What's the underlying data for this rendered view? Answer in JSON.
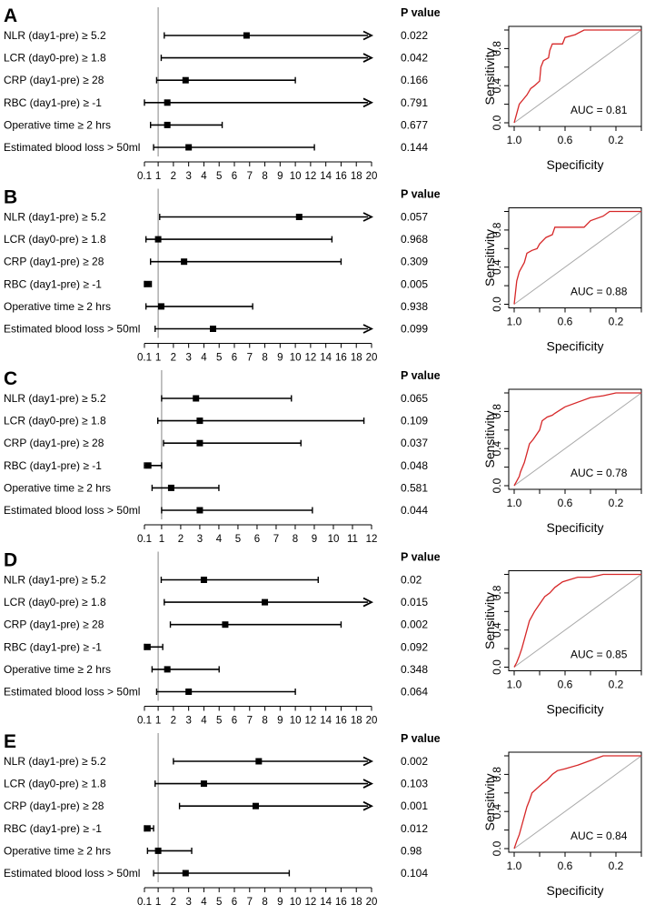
{
  "pvalue_header": "P value",
  "roc_xlabel": "Specificity",
  "roc_ylabel": "Sensitivity",
  "roc_x_ticks": [
    "1.0",
    "0.6",
    "0.2"
  ],
  "roc_y_ticks": [
    "0.0",
    "0.4",
    "0.8"
  ],
  "colors": {
    "roc_curve": "#d62728",
    "diagonal": "#a9a9a9",
    "axis": "#000000"
  },
  "chart_data": [
    {
      "panel": "A",
      "type": "forest",
      "xmax": 20,
      "x_ticks": [
        0.1,
        1,
        2,
        3,
        4,
        5,
        6,
        7,
        8,
        9,
        10,
        12,
        14,
        16,
        18,
        20
      ],
      "rows": [
        {
          "label": "NLR (day1-pre) ≥ 5.2",
          "est": 6.8,
          "lo": 1.4,
          "hi": 20,
          "arrow": true,
          "p": "0.022"
        },
        {
          "label": "LCR (day0-pre) ≥ 1.8",
          "est": null,
          "lo": 1.2,
          "hi": 20,
          "arrow": true,
          "p": "0.042"
        },
        {
          "label": "CRP (day1-pre) ≥ 28",
          "est": 2.8,
          "lo": 0.9,
          "hi": 10,
          "arrow": false,
          "p": "0.166"
        },
        {
          "label": "RBC (day1-pre) ≥ -1",
          "est": 1.6,
          "lo": 0.1,
          "hi": 20,
          "arrow": true,
          "p": "0.791"
        },
        {
          "label": "Operative time ≥ 2 hrs",
          "est": 1.6,
          "lo": 0.5,
          "hi": 5.2,
          "arrow": false,
          "p": "0.677"
        },
        {
          "label": "Estimated blood loss > 50ml",
          "est": 3.0,
          "lo": 0.7,
          "hi": 12.5,
          "arrow": false,
          "p": "0.144"
        }
      ],
      "roc": {
        "auc_text": "AUC = 0.81",
        "spec": [
          1.0,
          0.98,
          0.96,
          0.93,
          0.9,
          0.87,
          0.84,
          0.8,
          0.79,
          0.77,
          0.73,
          0.72,
          0.7,
          0.62,
          0.6,
          0.52,
          0.45,
          0.3,
          0.0
        ],
        "sens": [
          0.0,
          0.1,
          0.2,
          0.25,
          0.3,
          0.37,
          0.4,
          0.45,
          0.6,
          0.67,
          0.7,
          0.78,
          0.85,
          0.85,
          0.92,
          0.95,
          1.0,
          1.0,
          1.0
        ]
      }
    },
    {
      "panel": "B",
      "type": "forest",
      "xmax": 20,
      "x_ticks": [
        0.1,
        1,
        2,
        3,
        4,
        5,
        6,
        7,
        8,
        9,
        10,
        12,
        14,
        16,
        18,
        20
      ],
      "rows": [
        {
          "label": "NLR (day1-pre) ≥ 5.2",
          "est": 10.5,
          "lo": 1.1,
          "hi": 20,
          "arrow": true,
          "p": "0.057"
        },
        {
          "label": "LCR (day0-pre) ≥ 1.8",
          "est": 1.0,
          "lo": 0.2,
          "hi": 14.8,
          "arrow": false,
          "p": "0.968"
        },
        {
          "label": "CRP (day1-pre) ≥ 28",
          "est": 2.7,
          "lo": 0.5,
          "hi": 16,
          "arrow": false,
          "p": "0.309"
        },
        {
          "label": "RBC (day1-pre) ≥ -1",
          "est": 0.3,
          "lo": 0.1,
          "hi": 0.55,
          "arrow": false,
          "p": "0.005"
        },
        {
          "label": "Operative time ≥ 2 hrs",
          "est": 1.2,
          "lo": 0.2,
          "hi": 7.2,
          "arrow": false,
          "p": "0.938"
        },
        {
          "label": "Estimated blood loss > 50ml",
          "est": 4.6,
          "lo": 0.8,
          "hi": 20,
          "arrow": true,
          "p": "0.099"
        }
      ],
      "roc": {
        "auc_text": "AUC = 0.88",
        "spec": [
          1.0,
          0.98,
          0.96,
          0.94,
          0.92,
          0.9,
          0.86,
          0.82,
          0.8,
          0.75,
          0.7,
          0.68,
          0.58,
          0.45,
          0.4,
          0.3,
          0.25,
          0.0
        ],
        "sens": [
          0.0,
          0.25,
          0.35,
          0.4,
          0.45,
          0.55,
          0.58,
          0.6,
          0.65,
          0.72,
          0.75,
          0.83,
          0.83,
          0.83,
          0.9,
          0.95,
          1.0,
          1.0
        ]
      }
    },
    {
      "panel": "C",
      "type": "forest",
      "xmax": 12,
      "x_ticks": [
        0.1,
        1,
        2,
        3,
        4,
        5,
        6,
        7,
        8,
        9,
        10,
        11,
        12
      ],
      "rows": [
        {
          "label": "NLR (day1-pre) ≥ 5.2",
          "est": 2.8,
          "lo": 1.0,
          "hi": 7.8,
          "arrow": false,
          "p": "0.065"
        },
        {
          "label": "LCR (day0-pre) ≥ 1.8",
          "est": 3.0,
          "lo": 0.8,
          "hi": 11.6,
          "arrow": false,
          "p": "0.109"
        },
        {
          "label": "CRP (day1-pre) ≥ 28",
          "est": 3.0,
          "lo": 1.1,
          "hi": 8.3,
          "arrow": false,
          "p": "0.037"
        },
        {
          "label": "RBC (day1-pre) ≥ -1",
          "est": 0.3,
          "lo": 0.1,
          "hi": 1.0,
          "arrow": false,
          "p": "0.048"
        },
        {
          "label": "Operative time ≥ 2 hrs",
          "est": 1.5,
          "lo": 0.5,
          "hi": 4.0,
          "arrow": false,
          "p": "0.581"
        },
        {
          "label": "Estimated blood loss > 50ml",
          "est": 3.0,
          "lo": 1.0,
          "hi": 8.9,
          "arrow": false,
          "p": "0.044"
        }
      ],
      "roc": {
        "auc_text": "AUC = 0.78",
        "spec": [
          1.0,
          0.98,
          0.96,
          0.95,
          0.92,
          0.9,
          0.88,
          0.85,
          0.8,
          0.78,
          0.74,
          0.7,
          0.68,
          0.6,
          0.5,
          0.4,
          0.3,
          0.2,
          0.0
        ],
        "sens": [
          0.0,
          0.05,
          0.1,
          0.15,
          0.25,
          0.35,
          0.45,
          0.5,
          0.6,
          0.7,
          0.74,
          0.76,
          0.78,
          0.85,
          0.9,
          0.95,
          0.97,
          1.0,
          1.0
        ]
      }
    },
    {
      "panel": "D",
      "type": "forest",
      "xmax": 20,
      "x_ticks": [
        0.1,
        1,
        2,
        3,
        4,
        5,
        6,
        7,
        8,
        9,
        10,
        12,
        14,
        16,
        18,
        20
      ],
      "rows": [
        {
          "label": "NLR (day1-pre) ≥ 5.2",
          "est": 4.0,
          "lo": 1.2,
          "hi": 13,
          "arrow": false,
          "p": "0.02"
        },
        {
          "label": "LCR (day0-pre) ≥ 1.8",
          "est": 8.0,
          "lo": 1.4,
          "hi": 20,
          "arrow": true,
          "p": "0.015"
        },
        {
          "label": "CRP (day1-pre) ≥ 28",
          "est": 5.4,
          "lo": 1.8,
          "hi": 16,
          "arrow": false,
          "p": "0.002"
        },
        {
          "label": "RBC (day1-pre) ≥ -1",
          "est": 0.3,
          "lo": 0.1,
          "hi": 1.3,
          "arrow": false,
          "p": "0.092"
        },
        {
          "label": "Operative time ≥ 2 hrs",
          "est": 1.6,
          "lo": 0.6,
          "hi": 5.0,
          "arrow": false,
          "p": "0.348"
        },
        {
          "label": "Estimated blood loss > 50ml",
          "est": 3.0,
          "lo": 0.9,
          "hi": 10,
          "arrow": false,
          "p": "0.064"
        }
      ],
      "roc": {
        "auc_text": "AUC = 0.85",
        "spec": [
          1.0,
          0.98,
          0.96,
          0.94,
          0.92,
          0.9,
          0.88,
          0.86,
          0.84,
          0.8,
          0.76,
          0.72,
          0.68,
          0.62,
          0.5,
          0.4,
          0.3,
          0.2,
          0.0
        ],
        "sens": [
          0.0,
          0.05,
          0.12,
          0.2,
          0.3,
          0.4,
          0.5,
          0.55,
          0.6,
          0.68,
          0.76,
          0.8,
          0.86,
          0.92,
          0.97,
          0.97,
          1.0,
          1.0,
          1.0
        ]
      }
    },
    {
      "panel": "E",
      "type": "forest",
      "xmax": 20,
      "x_ticks": [
        0.1,
        1,
        2,
        3,
        4,
        5,
        6,
        7,
        8,
        9,
        10,
        12,
        14,
        16,
        18,
        20
      ],
      "rows": [
        {
          "label": "NLR (day1-pre) ≥ 5.2",
          "est": 7.6,
          "lo": 2.0,
          "hi": 20,
          "arrow": true,
          "p": "0.002"
        },
        {
          "label": "LCR (day0-pre) ≥ 1.8",
          "est": 4.0,
          "lo": 0.8,
          "hi": 20,
          "arrow": true,
          "p": "0.103"
        },
        {
          "label": "CRP (day1-pre) ≥ 28",
          "est": 7.4,
          "lo": 2.4,
          "hi": 20,
          "arrow": true,
          "p": "0.001"
        },
        {
          "label": "RBC (day1-pre) ≥ -1",
          "est": 0.3,
          "lo": 0.1,
          "hi": 0.7,
          "arrow": false,
          "p": "0.012"
        },
        {
          "label": "Operative time ≥ 2 hrs",
          "est": 1.0,
          "lo": 0.3,
          "hi": 3.2,
          "arrow": false,
          "p": "0.98"
        },
        {
          "label": "Estimated blood loss > 50ml",
          "est": 2.8,
          "lo": 0.7,
          "hi": 9.6,
          "arrow": false,
          "p": "0.104"
        }
      ],
      "roc": {
        "auc_text": "AUC = 0.84",
        "spec": [
          1.0,
          0.98,
          0.96,
          0.94,
          0.92,
          0.9,
          0.88,
          0.86,
          0.82,
          0.78,
          0.74,
          0.7,
          0.66,
          0.6,
          0.5,
          0.4,
          0.3,
          0.2,
          0.0
        ],
        "sens": [
          0.0,
          0.08,
          0.15,
          0.25,
          0.35,
          0.45,
          0.52,
          0.6,
          0.65,
          0.7,
          0.74,
          0.8,
          0.84,
          0.86,
          0.9,
          0.95,
          1.0,
          1.0,
          1.0
        ]
      }
    }
  ]
}
